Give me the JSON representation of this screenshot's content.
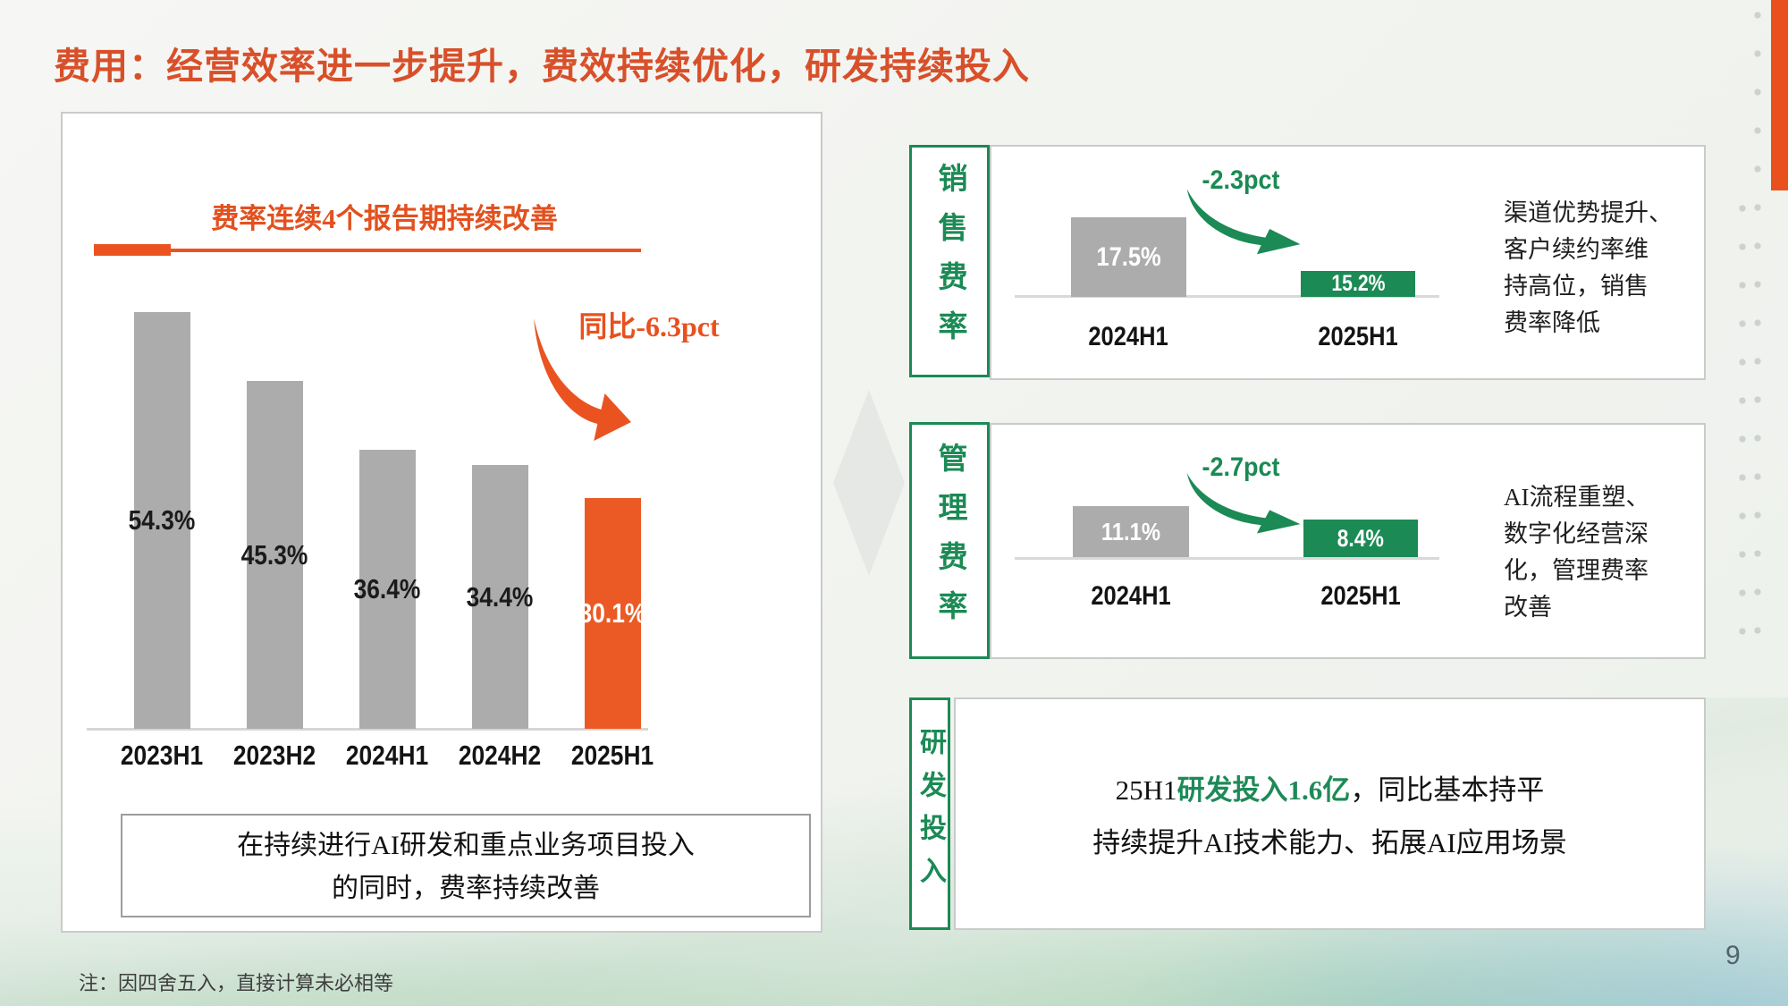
{
  "page": {
    "title": "费用：经营效率进一步提升，费效持续优化，研发持续投入",
    "footnote": "注：因四舍五入，直接计算未必相等",
    "page_number": "9"
  },
  "colors": {
    "orange": "#EA5320",
    "orange_bar": "#EB5A24",
    "green": "#1B8A55",
    "gray_bar": "#ACACAC"
  },
  "left_panel": {
    "note_line1": "在持续进行AI研发和重点业务项目投入",
    "note_line2": "的同时，费率持续改善"
  },
  "chart_data": [
    {
      "type": "bar",
      "title": "费率连续4个报告期持续改善",
      "categories": [
        "2023H1",
        "2023H2",
        "2024H1",
        "2024H2",
        "2025H1"
      ],
      "values": [
        54.3,
        45.3,
        36.4,
        34.4,
        30.1
      ],
      "data_labels": [
        "54.3%",
        "45.3%",
        "36.4%",
        "34.4%",
        "30.1%"
      ],
      "unit": "%",
      "highlight_category": "2025H1",
      "annotation": "同比-6.3pct",
      "grid": false,
      "ylim": [
        0,
        60
      ]
    },
    {
      "type": "bar",
      "title": "销售费率",
      "categories": [
        "2024H1",
        "2025H1"
      ],
      "values": [
        17.5,
        15.2
      ],
      "data_labels": [
        "17.5%",
        "15.2%"
      ],
      "unit": "%",
      "annotation": "-2.3pct",
      "grid": false
    },
    {
      "type": "bar",
      "title": "管理费率",
      "categories": [
        "2024H1",
        "2025H1"
      ],
      "values": [
        11.1,
        8.4
      ],
      "data_labels": [
        "11.1%",
        "8.4%"
      ],
      "unit": "%",
      "annotation": "-2.7pct",
      "grid": false
    }
  ],
  "rows": [
    {
      "label": "销售费率",
      "description": "渠道优势提升、\n客户续约率维\n持高位，销售\n费率降低"
    },
    {
      "label": "管理费率",
      "description": "AI流程重塑、\n数字化经营深\n化，管理费率\n改善"
    }
  ],
  "rnd": {
    "label": "研发投入",
    "line1_prefix": "25H1",
    "line1_highlight": "研发投入1.6亿",
    "line1_suffix": "，同比基本持平",
    "line2": "持续提升AI技术能力、拓展AI应用场景"
  }
}
